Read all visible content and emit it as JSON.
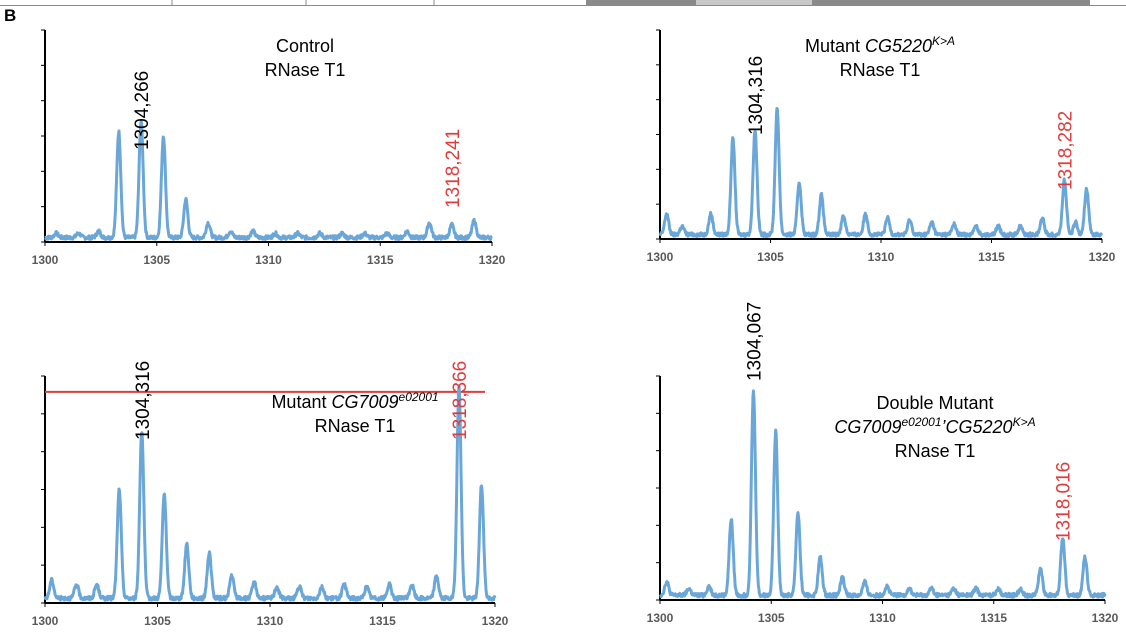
{
  "panel_letter": "B",
  "colors": {
    "trace": "#6aa7d8",
    "black_label": "#000000",
    "red_label": "#e03c3c",
    "axis": "#000000",
    "tick_label": "#595959",
    "ref_line": "#e03c3c",
    "top_strip_fill": "#8a8a8a",
    "top_strip_light": "#c8c8c8"
  },
  "chart_data": [
    {
      "type": "line",
      "title_lines": [
        {
          "parts": [
            {
              "text": "Control",
              "italic": false
            }
          ]
        },
        {
          "parts": [
            {
              "text": "RNase T1",
              "italic": false
            }
          ]
        }
      ],
      "xlim": [
        1300,
        1320
      ],
      "x_ticks": [
        "1300",
        "1305",
        "1310",
        "1315",
        "1320"
      ],
      "ylim": [
        0,
        1
      ],
      "y_tick_count": 6,
      "peak_labels": [
        {
          "text": "1304,266",
          "x": 1304.3,
          "color": "black"
        },
        {
          "text": "1318,241",
          "x": 1318.2,
          "color": "red"
        }
      ],
      "peaks": [
        {
          "x": 1300.5,
          "h": 0.02
        },
        {
          "x": 1301.5,
          "h": 0.02
        },
        {
          "x": 1302.4,
          "h": 0.03
        },
        {
          "x": 1303.3,
          "h": 0.5
        },
        {
          "x": 1304.3,
          "h": 0.55
        },
        {
          "x": 1305.3,
          "h": 0.48
        },
        {
          "x": 1306.3,
          "h": 0.18
        },
        {
          "x": 1307.3,
          "h": 0.07
        },
        {
          "x": 1308.3,
          "h": 0.03
        },
        {
          "x": 1309.3,
          "h": 0.03
        },
        {
          "x": 1310.3,
          "h": 0.02
        },
        {
          "x": 1311.3,
          "h": 0.02
        },
        {
          "x": 1312.3,
          "h": 0.02
        },
        {
          "x": 1313.3,
          "h": 0.02
        },
        {
          "x": 1314.3,
          "h": 0.02
        },
        {
          "x": 1315.3,
          "h": 0.02
        },
        {
          "x": 1316.2,
          "h": 0.03
        },
        {
          "x": 1317.2,
          "h": 0.07
        },
        {
          "x": 1318.2,
          "h": 0.06
        },
        {
          "x": 1319.2,
          "h": 0.08
        }
      ]
    },
    {
      "type": "line",
      "title_lines": [
        {
          "parts": [
            {
              "text": "Mutant ",
              "italic": false
            },
            {
              "text": "CG5220",
              "italic": true
            },
            {
              "text": "K>A",
              "italic": true,
              "sup": true
            }
          ]
        },
        {
          "parts": [
            {
              "text": "RNase T1",
              "italic": false
            }
          ]
        }
      ],
      "xlim": [
        1300,
        1320
      ],
      "x_ticks": [
        "1300",
        "1305",
        "1310",
        "1315",
        "1320"
      ],
      "ylim": [
        0,
        1
      ],
      "y_tick_count": 6,
      "peak_labels": [
        {
          "text": "1304,316",
          "x": 1304.3,
          "color": "black"
        },
        {
          "text": "1318,282",
          "x": 1318.3,
          "color": "red"
        }
      ],
      "peaks": [
        {
          "x": 1300.3,
          "h": 0.1
        },
        {
          "x": 1301.0,
          "h": 0.04
        },
        {
          "x": 1302.3,
          "h": 0.1
        },
        {
          "x": 1303.3,
          "h": 0.46
        },
        {
          "x": 1304.3,
          "h": 0.5
        },
        {
          "x": 1305.3,
          "h": 0.6
        },
        {
          "x": 1306.3,
          "h": 0.25
        },
        {
          "x": 1307.3,
          "h": 0.19
        },
        {
          "x": 1308.3,
          "h": 0.09
        },
        {
          "x": 1309.3,
          "h": 0.1
        },
        {
          "x": 1310.3,
          "h": 0.08
        },
        {
          "x": 1311.3,
          "h": 0.07
        },
        {
          "x": 1312.3,
          "h": 0.06
        },
        {
          "x": 1313.3,
          "h": 0.05
        },
        {
          "x": 1314.3,
          "h": 0.04
        },
        {
          "x": 1315.3,
          "h": 0.04
        },
        {
          "x": 1316.3,
          "h": 0.04
        },
        {
          "x": 1317.3,
          "h": 0.08
        },
        {
          "x": 1318.3,
          "h": 0.26
        },
        {
          "x": 1318.8,
          "h": 0.06
        },
        {
          "x": 1319.3,
          "h": 0.22
        }
      ]
    },
    {
      "type": "line",
      "title_lines": [
        {
          "parts": [
            {
              "text": "Mutant ",
              "italic": false
            },
            {
              "text": "CG7009",
              "italic": true
            },
            {
              "text": "e02001",
              "italic": true,
              "sup": true
            }
          ]
        },
        {
          "parts": [
            {
              "text": "RNase T1",
              "italic": false
            }
          ]
        }
      ],
      "xlim": [
        1300,
        1320
      ],
      "x_ticks": [
        "1300",
        "1305",
        "1310",
        "1315",
        "1320"
      ],
      "ylim": [
        0,
        1
      ],
      "y_tick_count": 6,
      "reference_line": {
        "y": 0.93
      },
      "peak_labels": [
        {
          "text": "1304,316",
          "x": 1304.3,
          "color": "black"
        },
        {
          "text": "1318,366",
          "x": 1318.4,
          "color": "red"
        }
      ],
      "peaks": [
        {
          "x": 1300.3,
          "h": 0.08
        },
        {
          "x": 1301.4,
          "h": 0.06
        },
        {
          "x": 1302.3,
          "h": 0.06
        },
        {
          "x": 1303.3,
          "h": 0.48
        },
        {
          "x": 1304.3,
          "h": 0.74
        },
        {
          "x": 1305.3,
          "h": 0.46
        },
        {
          "x": 1306.3,
          "h": 0.24
        },
        {
          "x": 1307.3,
          "h": 0.2
        },
        {
          "x": 1308.3,
          "h": 0.1
        },
        {
          "x": 1309.3,
          "h": 0.07
        },
        {
          "x": 1310.3,
          "h": 0.05
        },
        {
          "x": 1311.3,
          "h": 0.05
        },
        {
          "x": 1312.3,
          "h": 0.05
        },
        {
          "x": 1313.3,
          "h": 0.06
        },
        {
          "x": 1314.3,
          "h": 0.05
        },
        {
          "x": 1315.3,
          "h": 0.06
        },
        {
          "x": 1316.3,
          "h": 0.06
        },
        {
          "x": 1317.4,
          "h": 0.1
        },
        {
          "x": 1318.4,
          "h": 0.93
        },
        {
          "x": 1319.4,
          "h": 0.5
        }
      ]
    },
    {
      "type": "line",
      "title_lines": [
        {
          "parts": [
            {
              "text": "Double Mutant",
              "italic": false
            }
          ]
        },
        {
          "parts": [
            {
              "text": "CG7009",
              "italic": true
            },
            {
              "text": "e02001",
              "italic": true,
              "sup": true
            },
            {
              "text": "’",
              "italic": true
            },
            {
              "text": "CG5220",
              "italic": true
            },
            {
              "text": "K>A",
              "italic": true,
              "sup": true
            }
          ]
        },
        {
          "parts": [
            {
              "text": "RNase T1",
              "italic": false
            }
          ]
        }
      ],
      "xlim": [
        1300,
        1320
      ],
      "x_ticks": [
        "1300",
        "1305",
        "1310",
        "1315",
        "1320"
      ],
      "ylim": [
        0,
        1
      ],
      "y_tick_count": 6,
      "peak_labels": [
        {
          "text": "1304,067",
          "x": 1304.2,
          "color": "black"
        },
        {
          "text": "1318,016",
          "x": 1318.1,
          "color": "red"
        }
      ],
      "peaks": [
        {
          "x": 1300.3,
          "h": 0.06
        },
        {
          "x": 1301.3,
          "h": 0.03
        },
        {
          "x": 1302.2,
          "h": 0.04
        },
        {
          "x": 1303.2,
          "h": 0.34
        },
        {
          "x": 1304.2,
          "h": 0.91
        },
        {
          "x": 1305.2,
          "h": 0.73
        },
        {
          "x": 1306.2,
          "h": 0.37
        },
        {
          "x": 1307.2,
          "h": 0.17
        },
        {
          "x": 1308.2,
          "h": 0.08
        },
        {
          "x": 1309.2,
          "h": 0.06
        },
        {
          "x": 1310.2,
          "h": 0.04
        },
        {
          "x": 1311.2,
          "h": 0.03
        },
        {
          "x": 1312.2,
          "h": 0.03
        },
        {
          "x": 1313.2,
          "h": 0.03
        },
        {
          "x": 1314.2,
          "h": 0.03
        },
        {
          "x": 1315.2,
          "h": 0.03
        },
        {
          "x": 1316.2,
          "h": 0.03
        },
        {
          "x": 1317.1,
          "h": 0.12
        },
        {
          "x": 1318.1,
          "h": 0.26
        },
        {
          "x": 1319.1,
          "h": 0.17
        }
      ]
    }
  ]
}
